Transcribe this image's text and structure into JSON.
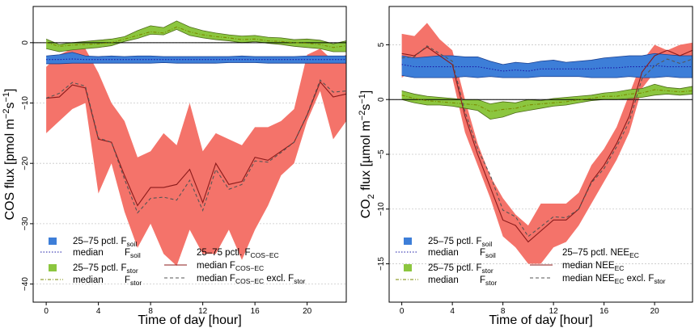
{
  "chart_data": [
    {
      "type": "area",
      "xlabel": "Time of day [hour]",
      "ylabel_main": "COS flux [pmol m",
      "ylabel_exp1": "−2",
      "ylabel_mid": "s",
      "ylabel_exp2": "−1",
      "ylabel_end": "]",
      "xlim": [
        -1,
        23
      ],
      "ylim": [
        -43,
        6
      ],
      "xticks": [
        0,
        4,
        8,
        12,
        16,
        20
      ],
      "yticks": [
        0,
        -10,
        -20,
        -30,
        -40
      ],
      "grid": "horizontal dotted",
      "x": [
        0,
        1,
        2,
        3,
        4,
        5,
        6,
        7,
        8,
        9,
        10,
        11,
        12,
        13,
        14,
        15,
        16,
        17,
        18,
        19,
        20,
        21,
        22,
        23
      ],
      "series": [
        {
          "name": "F_COS−EC",
          "kind": "band",
          "color": "#f4736a",
          "low": [
            -15,
            -13,
            -11,
            -10,
            -25,
            -20,
            -28,
            -34,
            -30,
            -35,
            -37,
            -31,
            -35,
            -35,
            -31,
            -36,
            -31,
            -27,
            -22,
            -20,
            -13,
            -8,
            -16,
            -13
          ],
          "high": [
            -4,
            -2,
            -1,
            -1,
            -5,
            -10,
            -13,
            -19,
            -18,
            -15,
            -17,
            -10,
            -18,
            -15,
            -16,
            -17,
            -14,
            -14,
            -13,
            -11,
            -2,
            -1,
            -3,
            -2
          ]
        },
        {
          "name": "F_soil",
          "kind": "band",
          "color": "#3d7ed8",
          "low": [
            -3.5,
            -3.5,
            -3.4,
            -3.4,
            -3.4,
            -3.4,
            -3.4,
            -3.4,
            -3.4,
            -3.3,
            -3.4,
            -3.4,
            -3.4,
            -3.4,
            -3.3,
            -3.3,
            -3.3,
            -3.4,
            -3.4,
            -3.4,
            -3.4,
            -3.4,
            -3.4,
            -3.4
          ],
          "high": [
            -2.2,
            -2.0,
            -1.6,
            -2.2,
            -2.3,
            -2.2,
            -2.3,
            -2.2,
            -2.2,
            -2.3,
            -2.3,
            -2.3,
            -2.3,
            -2.3,
            -2.3,
            -2.2,
            -2.3,
            -2.3,
            -2.3,
            -2.3,
            -2.2,
            -2.2,
            -2.2,
            -2.2
          ]
        },
        {
          "name": "F_stor",
          "kind": "band",
          "color": "#8cc63f",
          "low": [
            -1.0,
            -1.5,
            -1.2,
            -1.0,
            -0.8,
            -0.5,
            0.2,
            0.7,
            1.4,
            1.3,
            2.2,
            1.2,
            0.8,
            0.5,
            0.3,
            0.0,
            0.2,
            -0.1,
            -0.3,
            -0.6,
            -0.8,
            -1.0,
            -1.5,
            -1.5
          ],
          "high": [
            0.6,
            -0.3,
            0.0,
            0.2,
            0.4,
            0.6,
            1.0,
            2.0,
            2.8,
            2.5,
            3.6,
            2.6,
            2.0,
            1.6,
            1.3,
            1.1,
            1.2,
            0.9,
            0.8,
            0.5,
            0.6,
            0.4,
            -0.2,
            0.3
          ]
        },
        {
          "name": "median F_soil",
          "kind": "line",
          "color": "#1a1aa6",
          "dash": "1.5,2",
          "values": [
            -2.8,
            -2.8,
            -2.7,
            -2.8,
            -2.8,
            -2.8,
            -2.8,
            -2.8,
            -2.8,
            -2.8,
            -2.8,
            -2.8,
            -2.8,
            -2.8,
            -2.8,
            -2.8,
            -2.8,
            -2.8,
            -2.8,
            -2.8,
            -2.8,
            -2.8,
            -2.8,
            -2.8
          ]
        },
        {
          "name": "median F_stor",
          "kind": "line",
          "color": "#7a8a00",
          "dash": "4,2,1,2",
          "values": [
            0.0,
            -0.6,
            -0.4,
            -0.3,
            -0.2,
            0.0,
            0.6,
            1.2,
            1.8,
            1.6,
            2.6,
            1.8,
            1.3,
            1.0,
            0.8,
            0.5,
            0.6,
            0.3,
            0.2,
            0.0,
            -0.1,
            -0.3,
            -0.8,
            -0.5
          ]
        },
        {
          "name": "median F_COS−EC",
          "kind": "line",
          "color": "#8b1a1a",
          "dash": "",
          "values": [
            -9.2,
            -9.0,
            -7.0,
            -7.5,
            -16.0,
            -16.5,
            -22.0,
            -27.0,
            -24.0,
            -24.0,
            -23.5,
            -21.0,
            -26.5,
            -20.0,
            -23.5,
            -23.0,
            -19.0,
            -19.5,
            -18.0,
            -16.5,
            -12.0,
            -6.5,
            -9.0,
            -8.5
          ]
        },
        {
          "name": "median F_COS−EC excl. F_stor",
          "kind": "line",
          "color": "#555555",
          "dash": "4,3",
          "values": [
            -9.2,
            -8.4,
            -6.6,
            -7.2,
            -15.8,
            -16.5,
            -22.6,
            -28.2,
            -25.8,
            -25.6,
            -26.1,
            -22.8,
            -27.8,
            -21.0,
            -24.3,
            -23.5,
            -19.6,
            -19.8,
            -18.2,
            -16.5,
            -11.9,
            -6.2,
            -8.2,
            -8.0
          ]
        }
      ],
      "legend": [
        {
          "kind": "box",
          "color": "#3d7ed8",
          "text": "25–75 pctl. F",
          "sub": "soil"
        },
        {
          "kind": "line",
          "color": "#1a1aa6",
          "dash": "1.5,2",
          "text": "median",
          "sub": "soil",
          "pre": "F"
        },
        {
          "kind": "box",
          "color": "#8cc63f",
          "text": "25–75 pctl. F",
          "sub": "stor"
        },
        {
          "kind": "line",
          "color": "#7a8a00",
          "dash": "4,2,1,2",
          "text": "median",
          "sub": "stor",
          "pre": "F"
        },
        {
          "kind": "box",
          "color": "#f4736a",
          "text": "25–75 pctl. F",
          "sub": "COS−EC"
        },
        {
          "kind": "line",
          "color": "#8b1a1a",
          "dash": "",
          "text": "median F",
          "sub": "COS−EC"
        },
        {
          "kind": "line",
          "color": "#555555",
          "dash": "4,3",
          "text": "median F",
          "sub": "COS−EC",
          "post": " excl. F",
          "sub2": "stor"
        }
      ],
      "legend_placement": "bottom"
    },
    {
      "type": "area",
      "xlabel": "Time of day [hour]",
      "ylabel_main": "CO",
      "ylabel_co2sub": "2",
      "ylabel_rest": " flux [µmol m",
      "ylabel_exp1": "−2",
      "ylabel_mid": "s",
      "ylabel_exp2": "−1",
      "ylabel_end": "]",
      "xlim": [
        -1,
        23
      ],
      "ylim": [
        -18.5,
        8.5
      ],
      "xticks": [
        0,
        4,
        8,
        12,
        16,
        20
      ],
      "yticks": [
        5,
        0,
        -5,
        -10,
        -15
      ],
      "grid": "horizontal dotted",
      "x": [
        0,
        1,
        2,
        3,
        4,
        5,
        6,
        7,
        8,
        9,
        10,
        11,
        12,
        13,
        14,
        15,
        16,
        17,
        18,
        19,
        20,
        21,
        22,
        23
      ],
      "series": [
        {
          "name": "NEE_EC",
          "kind": "band",
          "color": "#f4736a",
          "low": [
            2.0,
            2.8,
            3.0,
            3.0,
            2.0,
            -3.0,
            -6.0,
            -9.0,
            -12.5,
            -13.5,
            -15.0,
            -15.0,
            -13.5,
            -13.0,
            -11.5,
            -9.5,
            -7.5,
            -5.5,
            -3.0,
            1.0,
            2.5,
            2.5,
            2.8,
            3.2
          ],
          "high": [
            6.0,
            5.8,
            7.0,
            5.5,
            4.5,
            0.0,
            -4.0,
            -7.0,
            -9.0,
            -10.5,
            -11.5,
            -9.5,
            -9.5,
            -9.5,
            -8.5,
            -6.0,
            -4.5,
            -2.5,
            0.5,
            3.5,
            5.0,
            4.5,
            5.0,
            5.2
          ]
        },
        {
          "name": "F_soil",
          "kind": "band",
          "color": "#3d7ed8",
          "low": [
            2.2,
            2.0,
            2.0,
            2.0,
            2.0,
            2.1,
            2.0,
            2.1,
            2.0,
            2.0,
            2.0,
            2.1,
            2.1,
            2.1,
            2.1,
            2.0,
            2.0,
            2.0,
            2.1,
            2.0,
            2.0,
            2.1,
            2.0,
            2.0
          ],
          "high": [
            4.0,
            3.8,
            3.9,
            4.0,
            4.0,
            3.9,
            3.9,
            3.5,
            3.2,
            3.4,
            3.3,
            3.5,
            3.6,
            3.4,
            3.5,
            3.6,
            3.8,
            3.9,
            4.0,
            4.0,
            4.2,
            4.1,
            4.0,
            4.0
          ]
        },
        {
          "name": "F_stor",
          "kind": "band",
          "color": "#8cc63f",
          "low": [
            0.0,
            -0.3,
            -0.5,
            -0.5,
            -0.6,
            -0.8,
            -1.0,
            -1.8,
            -1.6,
            -1.2,
            -1.0,
            -0.8,
            -0.6,
            -0.5,
            -0.3,
            -0.1,
            0.0,
            0.0,
            0.1,
            0.2,
            0.4,
            0.5,
            0.4,
            0.5
          ],
          "high": [
            0.8,
            0.5,
            0.3,
            0.2,
            0.1,
            0.0,
            0.0,
            -0.4,
            -0.2,
            -0.3,
            0.0,
            -0.1,
            0.1,
            0.2,
            0.3,
            0.4,
            0.6,
            0.7,
            0.9,
            1.0,
            1.4,
            1.1,
            1.0,
            1.2
          ]
        },
        {
          "name": "median F_soil",
          "kind": "line",
          "color": "#1a1aa6",
          "dash": "1.5,2",
          "values": [
            3.2,
            3.0,
            3.0,
            3.0,
            3.0,
            3.0,
            3.0,
            2.8,
            2.6,
            2.7,
            2.6,
            2.8,
            2.8,
            2.8,
            2.8,
            2.8,
            2.9,
            2.9,
            3.0,
            3.0,
            3.1,
            3.0,
            3.0,
            3.0
          ]
        },
        {
          "name": "median F_stor",
          "kind": "line",
          "color": "#7a8a00",
          "dash": "4,2,1,2",
          "values": [
            0.4,
            0.1,
            -0.1,
            -0.2,
            -0.3,
            -0.4,
            -0.5,
            -1.1,
            -0.9,
            -0.8,
            -0.5,
            -0.4,
            -0.3,
            -0.2,
            0.0,
            0.1,
            0.3,
            0.3,
            0.5,
            0.6,
            0.9,
            0.8,
            0.7,
            0.8
          ]
        },
        {
          "name": "median NEE_EC",
          "kind": "line",
          "color": "#8b1a1a",
          "dash": "",
          "values": [
            4.2,
            4.0,
            4.8,
            4.0,
            3.2,
            -1.5,
            -5.0,
            -8.0,
            -11.0,
            -11.5,
            -13.0,
            -12.0,
            -11.0,
            -11.0,
            -10.0,
            -7.5,
            -6.0,
            -4.0,
            -1.5,
            2.5,
            4.0,
            4.5,
            4.0,
            4.5
          ]
        },
        {
          "name": "median NEE_EC excl. F_stor",
          "kind": "line",
          "color": "#555555",
          "dash": "4,3",
          "values": [
            3.8,
            3.9,
            4.9,
            4.2,
            3.5,
            -1.1,
            -4.5,
            -6.9,
            -10.1,
            -10.7,
            -12.5,
            -11.6,
            -10.7,
            -10.8,
            -10.0,
            -7.6,
            -6.3,
            -4.3,
            -2.0,
            1.9,
            3.1,
            3.7,
            3.3,
            3.7
          ]
        }
      ],
      "legend": [
        {
          "kind": "box",
          "color": "#3d7ed8",
          "text": "25–75 pctl. F",
          "sub": "soil"
        },
        {
          "kind": "line",
          "color": "#1a1aa6",
          "dash": "1.5,2",
          "text": "median",
          "sub": "soil",
          "pre": "F"
        },
        {
          "kind": "box",
          "color": "#8cc63f",
          "text": "25–75 pctl. F",
          "sub": "stor"
        },
        {
          "kind": "line",
          "color": "#7a8a00",
          "dash": "4,2,1,2",
          "text": "median",
          "sub": "stor",
          "pre": "F"
        },
        {
          "kind": "box",
          "color": "#f4736a",
          "text": "25–75 pctl. NEE",
          "sub": "EC"
        },
        {
          "kind": "line",
          "color": "#8b1a1a",
          "dash": "",
          "text": "median NEE",
          "sub": "EC"
        },
        {
          "kind": "line",
          "color": "#555555",
          "dash": "4,3",
          "text": "median NEE",
          "sub": "EC",
          "post": " excl. F",
          "sub2": "stor"
        }
      ],
      "legend_placement": "bottom"
    }
  ]
}
